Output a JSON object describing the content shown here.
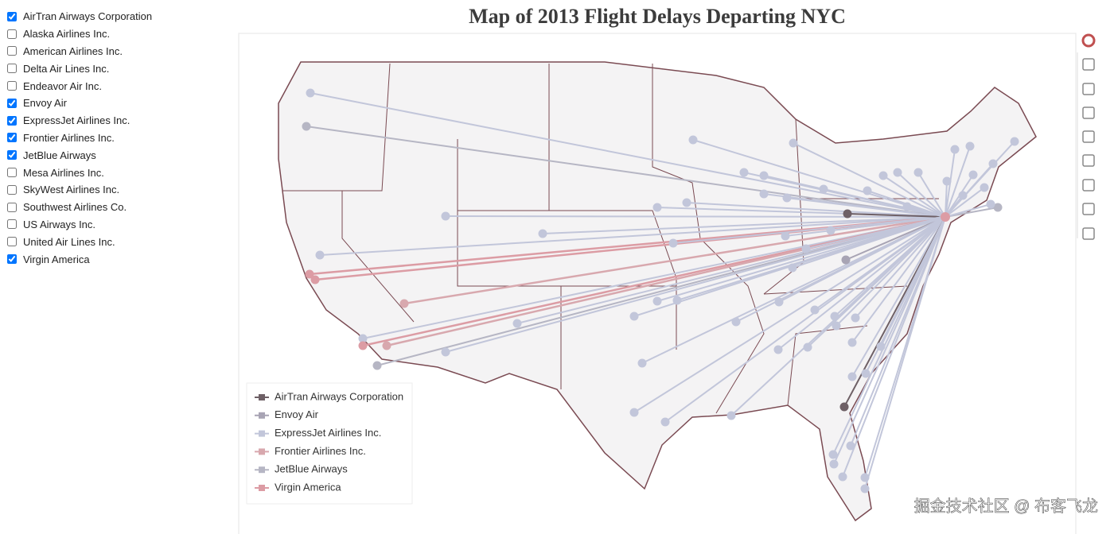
{
  "sidebar": {
    "airlines": [
      {
        "label": "AirTran Airways Corporation",
        "checked": true
      },
      {
        "label": "Alaska Airlines Inc.",
        "checked": false
      },
      {
        "label": "American Airlines Inc.",
        "checked": false
      },
      {
        "label": "Delta Air Lines Inc.",
        "checked": false
      },
      {
        "label": "Endeavor Air Inc.",
        "checked": false
      },
      {
        "label": "Envoy Air",
        "checked": true
      },
      {
        "label": "ExpressJet Airlines Inc.",
        "checked": true
      },
      {
        "label": "Frontier Airlines Inc.",
        "checked": true
      },
      {
        "label": "JetBlue Airways",
        "checked": true
      },
      {
        "label": "Mesa Airlines Inc.",
        "checked": false
      },
      {
        "label": "SkyWest Airlines Inc.",
        "checked": false
      },
      {
        "label": "Southwest Airlines Co.",
        "checked": false
      },
      {
        "label": "US Airways Inc.",
        "checked": false
      },
      {
        "label": "United Air Lines Inc.",
        "checked": false
      },
      {
        "label": "Virgin America",
        "checked": true
      }
    ]
  },
  "map": {
    "title": "Map of 2013 Flight Delays Departing NYC",
    "legend": [
      {
        "label": "AirTran Airways Corporation",
        "color": "#6e6066"
      },
      {
        "label": "Envoy Air",
        "color": "#a8a4b4"
      },
      {
        "label": "ExpressJet Airlines Inc.",
        "color": "#c2c6da"
      },
      {
        "label": "Frontier Airlines Inc.",
        "color": "#d8a8ae"
      },
      {
        "label": "JetBlue Airways",
        "color": "#b6b6c4"
      },
      {
        "label": "Virgin America",
        "color": "#dc9ca4"
      }
    ]
  },
  "watermark": "掘金技术社区 @ 布客飞龙"
}
